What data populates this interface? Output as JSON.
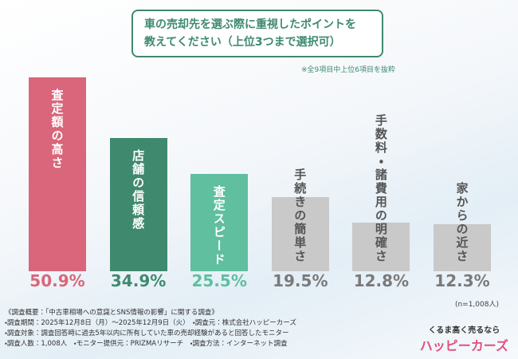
{
  "chart_data": {
    "type": "bar",
    "title_lines": [
      "車の売却先を選ぶ際に重視したポイントを",
      "教えてください（上位3つまで選択可）"
    ],
    "note": "※全9項目中上位6項目を抜粋",
    "categories": [
      "査定額の高さ",
      "店舗の信頼感",
      "査定スピード",
      "手続きの簡単さ",
      "手数料・諸費用の明確さ",
      "家からの近さ"
    ],
    "values": [
      50.9,
      34.9,
      25.5,
      19.5,
      12.8,
      12.3
    ],
    "value_labels": [
      "50.9%",
      "34.9%",
      "25.5%",
      "19.5%",
      "12.8%",
      "12.3%"
    ],
    "colors": [
      "#d9667a",
      "#3f8a6f",
      "#5fbf9f",
      "#c9c9c9",
      "#c9c9c9",
      "#c9c9c9"
    ],
    "label_colors": [
      "#d9667a",
      "#3f8a6f",
      "#5fbf9f",
      "#7a7a7a",
      "#7a7a7a",
      "#7a7a7a"
    ],
    "ylim": [
      0,
      55
    ],
    "sample": "(n=1,008人)"
  },
  "survey": {
    "heading": "《調査概要：「中古車相場への意識とSNS情報の影響」に関する調査》",
    "lines": [
      "・調査期間：2025年12月8日（月）～2025年12月9日（火）　・調査元：株式会社ハッピーカーズ",
      "・調査対象：調査回答時に過去5年以内に所有していた車の売却経験があると回答したモニター",
      "・調査人数：1,008人　・モニター提供元：PRIZMAリサーチ　・調査方法：インターネット調査"
    ]
  },
  "logo": {
    "tagline": "くるま高く売るなら",
    "name": "ハッピーカーズ"
  }
}
